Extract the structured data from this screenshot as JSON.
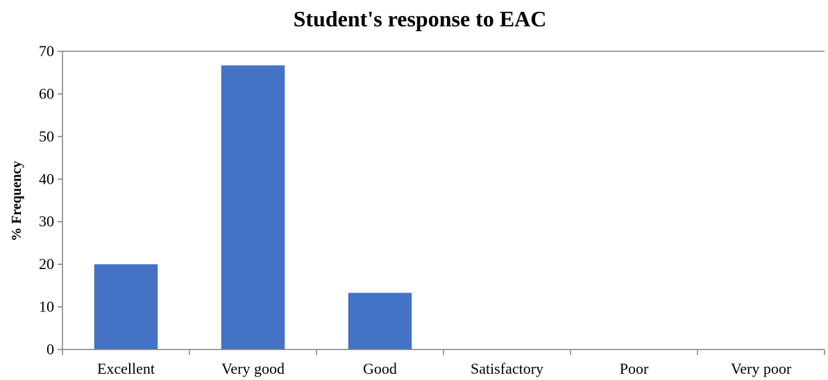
{
  "chart_data": {
    "type": "bar",
    "title": "Student's response to EAC",
    "xlabel": "",
    "ylabel": "% Frequency",
    "categories": [
      "Excellent",
      "Very good",
      "Good",
      "Satisfactory",
      "Poor",
      "Very poor"
    ],
    "values": [
      20,
      66.7,
      13.3,
      0,
      0,
      0
    ],
    "ylim": [
      0,
      70
    ],
    "yticks": [
      "0",
      "10",
      "20",
      "30",
      "40",
      "50",
      "60",
      "70"
    ],
    "grid": false,
    "legend": "none",
    "bar_color": "#4472C4"
  }
}
